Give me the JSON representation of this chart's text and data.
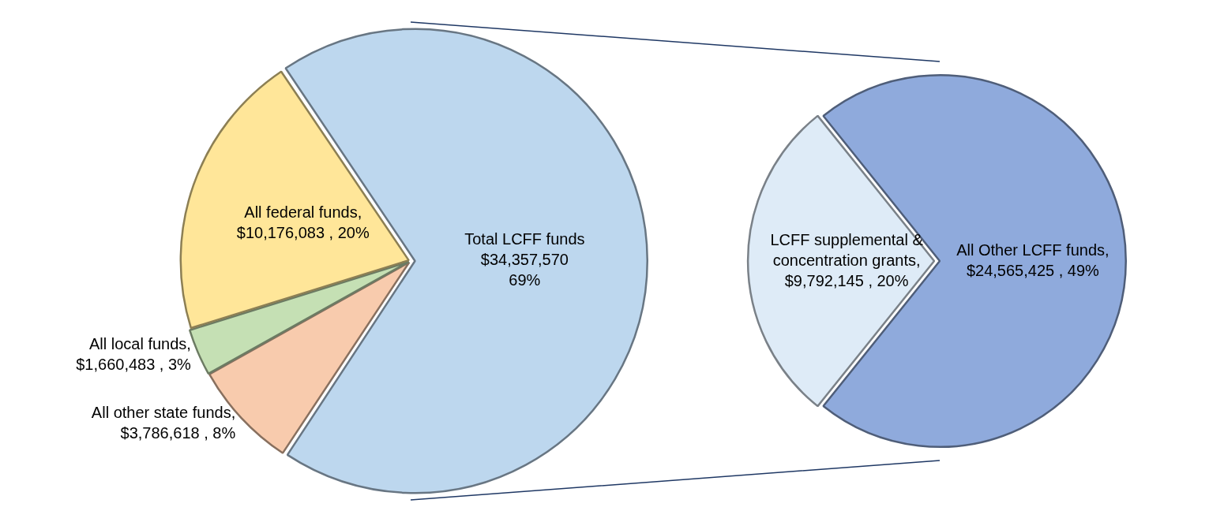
{
  "chart_data": [
    {
      "type": "pie",
      "categories": [
        "Total LCFF funds",
        "All other state funds",
        "All local funds",
        "All federal funds"
      ],
      "values": [
        34357570,
        3786618,
        1660483,
        10176083
      ],
      "colors": [
        "#bdd7ee",
        "#f8cbad",
        "#c5e0b4",
        "#ffe699"
      ],
      "value_labels": [
        "\n$34,357,570\n69%",
        ",\n$3,786,618 , 8%",
        ",\n$1,660,483 , 3%",
        ",\n$10,176,083 , 20%"
      ]
    },
    {
      "type": "pie",
      "categories": [
        "LCFF supplemental & concentration grants",
        "All Other LCFF funds"
      ],
      "values": [
        9792145,
        24565425
      ],
      "colors": [
        "#deebf7",
        "#8faadc"
      ],
      "value_labels": [
        ",\n$9,792,145 , 20%",
        ",\n$24,565,425 , 49%"
      ]
    }
  ]
}
